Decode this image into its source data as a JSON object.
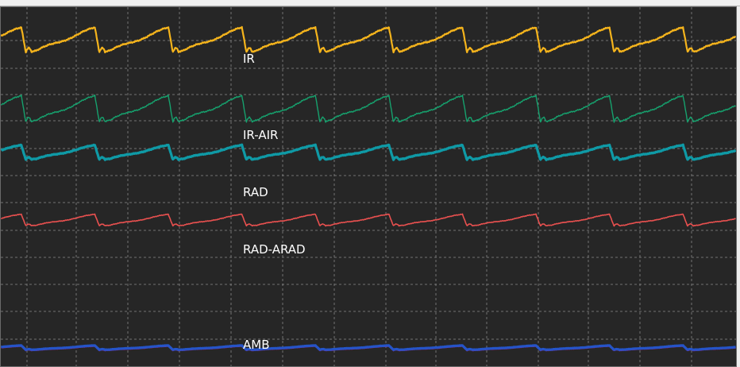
{
  "chart_data": {
    "type": "line",
    "grid": true,
    "background": "#262626",
    "grid_color": "#8a8a8a",
    "period_count": 10,
    "series": [
      {
        "name": "IR",
        "color": "#f5b41c",
        "width": 2.2
      },
      {
        "name": "IR-AIR",
        "color": "#16a26e",
        "width": 1.4
      },
      {
        "name": "RAD",
        "color": "#0f9aa6",
        "width": 3.2
      },
      {
        "name": "RAD-ARAD",
        "color": "#e8504f",
        "width": 1.6
      },
      {
        "name": "AMB",
        "color": "#2554c8",
        "width": 3.2
      }
    ],
    "amb_overlay_color": "#b2189a"
  }
}
